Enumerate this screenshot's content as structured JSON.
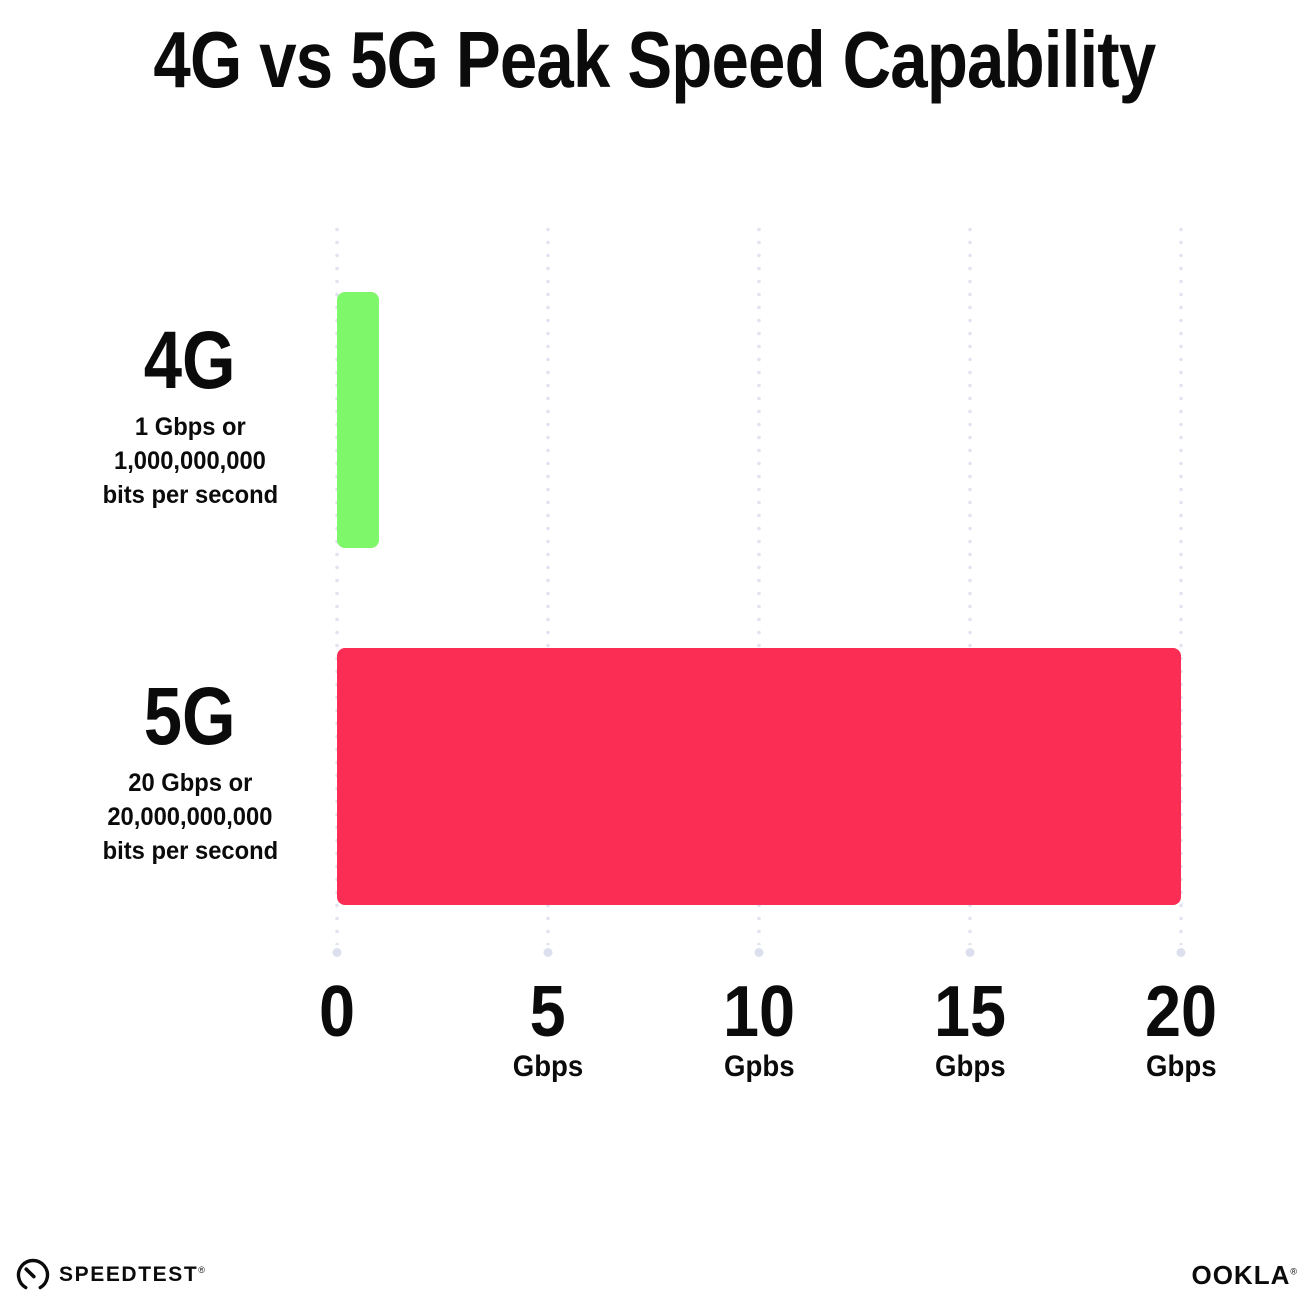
{
  "title": "4G vs 5G Peak Speed Capability",
  "chart_data": {
    "type": "bar",
    "orientation": "horizontal",
    "title": "4G vs 5G Peak Speed Capability",
    "categories": [
      "4G",
      "5G"
    ],
    "values": [
      1,
      20
    ],
    "value_unit": "Gbps",
    "category_sublabels": [
      [
        "1 Gbps or",
        "1,000,000,000",
        "bits per second"
      ],
      [
        "20 Gbps or",
        "20,000,000,000",
        "bits per second"
      ]
    ],
    "bar_colors": [
      "#7ff76a",
      "#fc2d55"
    ],
    "xlabel": "",
    "ylabel": "",
    "xlim": [
      0,
      20
    ],
    "x_ticks": [
      {
        "value": "0",
        "unit": ""
      },
      {
        "value": "5",
        "unit": "Gbps"
      },
      {
        "value": "10",
        "unit": "Gpbs"
      },
      {
        "value": "15",
        "unit": "Gbps"
      },
      {
        "value": "20",
        "unit": "Gbps"
      }
    ],
    "grid": "vertical dotted gridlines at each tick",
    "legend": "none"
  },
  "colors": {
    "background": "#ffffff",
    "text": "#0b0b0b",
    "grid_dot": "#e1e3f1",
    "grid_end_dot": "#dce0ee",
    "bar_4g": "#7ff76a",
    "bar_5g": "#fc2d55"
  },
  "footer": {
    "speedtest_label": "SPEEDTEST",
    "speedtest_mark": "®",
    "ookla_label": "OOKLA",
    "ookla_mark": "®"
  }
}
